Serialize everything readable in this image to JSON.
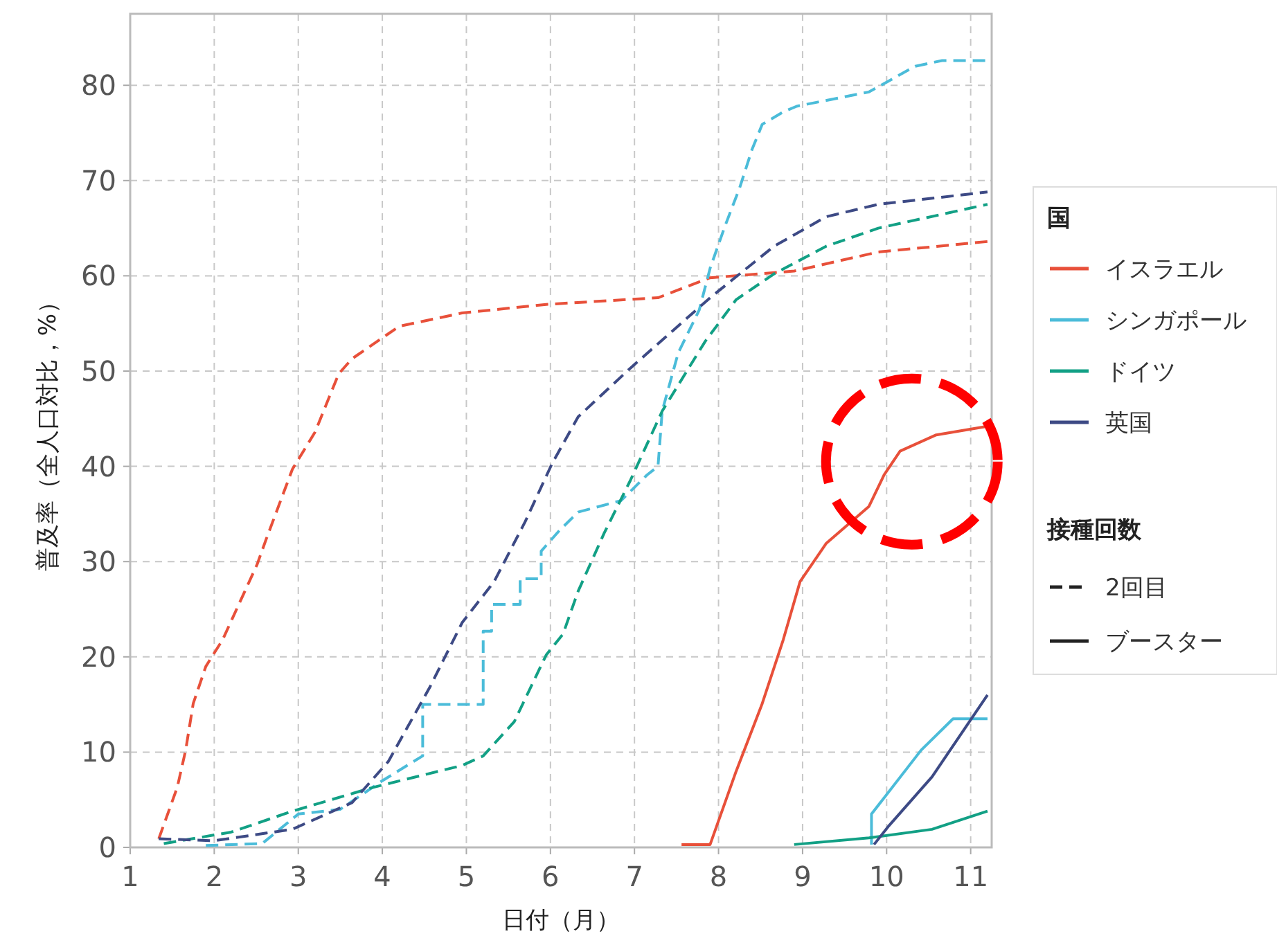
{
  "chart_data": {
    "type": "line",
    "xlabel": "日付（月）",
    "ylabel": "普及率（全人口対比，%）",
    "legend_title": "国",
    "legend": "right",
    "grid": true,
    "xlim": [
      1,
      11.25
    ],
    "xticks": [
      1,
      2,
      3,
      4,
      5,
      6,
      7,
      8,
      9,
      10,
      11
    ],
    "ylim": [
      0,
      87.5
    ],
    "yticks": [
      0,
      10,
      20,
      30,
      40,
      50,
      60,
      70,
      80
    ],
    "annotations": [
      "接種回数",
      "2回目",
      "ブースター"
    ],
    "series": [
      {
        "name": "イスラエル",
        "color": "#e8503a",
        "line_style": "dashed",
        "x": [
          1.34,
          1.56,
          1.66,
          1.75,
          1.9,
          2.1,
          2.51,
          2.62,
          2.93,
          3.2,
          3.48,
          3.64,
          4.2,
          4.95,
          5.95,
          7.28,
          7.9,
          8.9,
          9.9,
          11.2
        ],
        "values": [
          0.9,
          6.3,
          10.2,
          15.1,
          19.0,
          21.8,
          29.7,
          32.4,
          39.7,
          43.6,
          49.7,
          51.3,
          54.7,
          56.1,
          57.0,
          57.7,
          59.8,
          60.5,
          62.5,
          63.6
        ]
      },
      {
        "name": "シンガポール",
        "color": "#4bbcd9",
        "line_style": "dashed",
        "x": [
          1.9,
          2.57,
          3.0,
          3.5,
          4.0,
          4.48,
          4.48,
          5.2,
          5.2,
          5.3,
          5.3,
          5.64,
          5.64,
          5.89,
          5.89,
          6.11,
          6.33,
          6.84,
          7.15,
          7.28,
          7.33,
          7.52,
          7.77,
          7.9,
          8.08,
          8.25,
          8.4,
          8.52,
          8.77,
          8.93,
          9.79,
          10.34,
          10.66,
          11.2
        ],
        "values": [
          0.2,
          0.4,
          3.5,
          4.0,
          7.0,
          9.6,
          15.0,
          15.0,
          22.7,
          22.7,
          25.5,
          25.5,
          28.2,
          28.2,
          31.1,
          33.3,
          35.2,
          36.4,
          39.1,
          40.0,
          45.8,
          51.9,
          56.4,
          60.8,
          65.3,
          69.2,
          73.3,
          75.9,
          77.2,
          77.8,
          79.3,
          82.0,
          82.6,
          82.6
        ]
      },
      {
        "name": "ドイツ",
        "color": "#12a085",
        "line_style": "dashed",
        "x": [
          1.4,
          2.2,
          2.93,
          3.89,
          4.95,
          5.2,
          5.57,
          5.95,
          6.15,
          6.33,
          6.64,
          6.95,
          7.33,
          7.84,
          8.21,
          8.66,
          9.28,
          9.9,
          11.2
        ],
        "values": [
          0.4,
          1.6,
          3.8,
          6.3,
          8.6,
          9.6,
          13.2,
          20.2,
          22.4,
          26.9,
          33.0,
          38.5,
          45.8,
          53.1,
          57.5,
          60.2,
          63.1,
          65.0,
          67.5
        ]
      },
      {
        "name": "英国",
        "color": "#3d4a85",
        "line_style": "dashed",
        "x": [
          1.34,
          2.0,
          2.93,
          3.64,
          4.07,
          4.57,
          4.95,
          5.33,
          5.7,
          6.02,
          6.33,
          6.95,
          7.9,
          8.66,
          9.28,
          9.9,
          11.2
        ],
        "values": [
          0.9,
          0.7,
          1.9,
          4.7,
          9.0,
          16.9,
          23.6,
          27.9,
          34.2,
          40.3,
          45.2,
          50.3,
          57.7,
          63.1,
          66.2,
          67.5,
          68.8
        ]
      },
      {
        "color": "#e8503a",
        "line_style": "solid",
        "x": [
          7.56,
          7.9,
          8.21,
          8.52,
          8.77,
          8.97,
          9.28,
          9.79,
          9.97,
          10.16,
          10.59,
          11.2
        ],
        "values": [
          0.3,
          0.3,
          8.0,
          15.1,
          21.8,
          27.9,
          31.9,
          35.8,
          39.1,
          41.6,
          43.3,
          44.2
        ]
      },
      {
        "color": "#4bbcd9",
        "line_style": "solid",
        "x": [
          9.82,
          9.82,
          10.41,
          10.79,
          11.2
        ],
        "values": [
          0.3,
          3.5,
          10.2,
          13.5,
          13.5
        ]
      },
      {
        "color": "#12a085",
        "line_style": "solid",
        "x": [
          8.9,
          9.79,
          10.54,
          11.2
        ],
        "values": [
          0.3,
          1.0,
          1.9,
          3.8
        ]
      },
      {
        "color": "#3d4a85",
        "line_style": "solid",
        "x": [
          9.85,
          10.03,
          10.54,
          11.2
        ],
        "values": [
          0.3,
          2.3,
          7.4,
          16.0
        ]
      }
    ]
  }
}
